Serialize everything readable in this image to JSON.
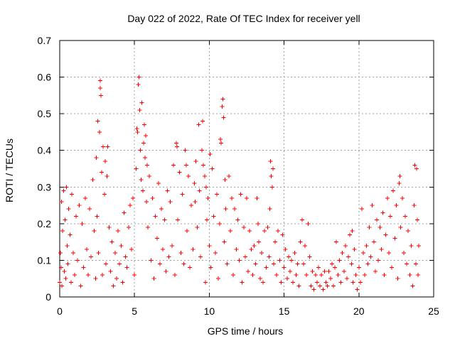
{
  "chart_data": {
    "type": "scatter",
    "title": "Day 022 of 2022, Rate Of TEC Index for receiver yell",
    "xlabel": "GPS time / hours",
    "ylabel": "ROTI / TECUs",
    "xlim": [
      0,
      25
    ],
    "ylim": [
      0,
      0.7
    ],
    "xticks": [
      "0",
      "5",
      "10",
      "15",
      "20",
      "25"
    ],
    "yticks": [
      "0",
      "0.1",
      "0.2",
      "0.3",
      "0.4",
      "0.5",
      "0.6",
      "0.7"
    ],
    "grid": true,
    "series": [
      {
        "color": "#ff0000",
        "marker": "plus",
        "points": [
          [
            0.0,
            0.04
          ],
          [
            0.05,
            0.12
          ],
          [
            0.1,
            0.08
          ],
          [
            0.12,
            0.26
          ],
          [
            0.15,
            0.03
          ],
          [
            0.2,
            0.18
          ],
          [
            0.25,
            0.29
          ],
          [
            0.3,
            0.07
          ],
          [
            0.35,
            0.21
          ],
          [
            0.4,
            0.05
          ],
          [
            0.45,
            0.3
          ],
          [
            0.5,
            0.14
          ],
          [
            0.55,
            0.09
          ],
          [
            0.6,
            0.24
          ],
          [
            0.7,
            0.17
          ],
          [
            0.75,
            0.04
          ],
          [
            0.8,
            0.28
          ],
          [
            0.9,
            0.12
          ],
          [
            1.0,
            0.06
          ],
          [
            1.1,
            0.22
          ],
          [
            1.2,
            0.1
          ],
          [
            1.3,
            0.25
          ],
          [
            1.4,
            0.03
          ],
          [
            1.5,
            0.2
          ],
          [
            1.6,
            0.08
          ],
          [
            1.7,
            0.27
          ],
          [
            1.8,
            0.13
          ],
          [
            1.9,
            0.06
          ],
          [
            2.0,
            0.24
          ],
          [
            2.1,
            0.11
          ],
          [
            2.2,
            0.32
          ],
          [
            2.3,
            0.18
          ],
          [
            2.4,
            0.05
          ],
          [
            2.45,
            0.38
          ],
          [
            2.5,
            0.22
          ],
          [
            2.55,
            0.48
          ],
          [
            2.6,
            0.12
          ],
          [
            2.65,
            0.45
          ],
          [
            2.7,
            0.59
          ],
          [
            2.72,
            0.57
          ],
          [
            2.75,
            0.55
          ],
          [
            2.8,
            0.34
          ],
          [
            2.85,
            0.06
          ],
          [
            2.9,
            0.41
          ],
          [
            3.0,
            0.28
          ],
          [
            3.05,
            0.37
          ],
          [
            3.1,
            0.09
          ],
          [
            3.15,
            0.33
          ],
          [
            3.2,
            0.41
          ],
          [
            3.3,
            0.19
          ],
          [
            3.4,
            0.07
          ],
          [
            3.5,
            0.15
          ],
          [
            3.6,
            0.03
          ],
          [
            3.7,
            0.12
          ],
          [
            3.8,
            0.05
          ],
          [
            3.9,
            0.18
          ],
          [
            4.0,
            0.09
          ],
          [
            4.1,
            0.14
          ],
          [
            4.2,
            0.04
          ],
          [
            4.3,
            0.23
          ],
          [
            4.4,
            0.11
          ],
          [
            4.5,
            0.08
          ],
          [
            4.6,
            0.19
          ],
          [
            4.7,
            0.25
          ],
          [
            4.8,
            0.13
          ],
          [
            4.9,
            0.27
          ],
          [
            5.0,
            0.06
          ],
          [
            5.1,
            0.35
          ],
          [
            5.15,
            0.46
          ],
          [
            5.2,
            0.45
          ],
          [
            5.25,
            0.58
          ],
          [
            5.3,
            0.6
          ],
          [
            5.35,
            0.51
          ],
          [
            5.4,
            0.4
          ],
          [
            5.45,
            0.32
          ],
          [
            5.5,
            0.53
          ],
          [
            5.55,
            0.29
          ],
          [
            5.6,
            0.42
          ],
          [
            5.65,
            0.47
          ],
          [
            5.7,
            0.38
          ],
          [
            5.75,
            0.44
          ],
          [
            5.8,
            0.26
          ],
          [
            5.85,
            0.36
          ],
          [
            5.9,
            0.19
          ],
          [
            6.0,
            0.33
          ],
          [
            6.1,
            0.1
          ],
          [
            6.2,
            0.27
          ],
          [
            6.3,
            0.05
          ],
          [
            6.4,
            0.22
          ],
          [
            6.5,
            0.16
          ],
          [
            6.6,
            0.31
          ],
          [
            6.7,
            0.09
          ],
          [
            6.8,
            0.24
          ],
          [
            6.9,
            0.13
          ],
          [
            7.0,
            0.21
          ],
          [
            7.1,
            0.07
          ],
          [
            7.2,
            0.29
          ],
          [
            7.3,
            0.11
          ],
          [
            7.4,
            0.26
          ],
          [
            7.5,
            0.14
          ],
          [
            7.6,
            0.36
          ],
          [
            7.7,
            0.06
          ],
          [
            7.8,
            0.42
          ],
          [
            7.85,
            0.41
          ],
          [
            7.9,
            0.21
          ],
          [
            8.0,
            0.34
          ],
          [
            8.1,
            0.12
          ],
          [
            8.2,
            0.28
          ],
          [
            8.3,
            0.09
          ],
          [
            8.4,
            0.4
          ],
          [
            8.45,
            0.36
          ],
          [
            8.5,
            0.18
          ],
          [
            8.6,
            0.33
          ],
          [
            8.7,
            0.08
          ],
          [
            8.8,
            0.25
          ],
          [
            8.9,
            0.13
          ],
          [
            9.0,
            0.31
          ],
          [
            9.05,
            0.26
          ],
          [
            9.1,
            0.37
          ],
          [
            9.2,
            0.19
          ],
          [
            9.3,
            0.47
          ],
          [
            9.35,
            0.29
          ],
          [
            9.4,
            0.11
          ],
          [
            9.5,
            0.4
          ],
          [
            9.55,
            0.48
          ],
          [
            9.6,
            0.36
          ],
          [
            9.7,
            0.33
          ],
          [
            9.75,
            0.04
          ],
          [
            9.8,
            0.3
          ],
          [
            9.85,
            0.21
          ],
          [
            9.9,
            0.27
          ],
          [
            10.0,
            0.14
          ],
          [
            10.05,
            0.39
          ],
          [
            10.1,
            0.08
          ],
          [
            10.2,
            0.35
          ],
          [
            10.3,
            0.22
          ],
          [
            10.4,
            0.12
          ],
          [
            10.5,
            0.28
          ],
          [
            10.6,
            0.05
          ],
          [
            10.7,
            0.2
          ],
          [
            10.75,
            0.43
          ],
          [
            10.8,
            0.42
          ],
          [
            10.85,
            0.52
          ],
          [
            10.9,
            0.54
          ],
          [
            10.95,
            0.49
          ],
          [
            11.0,
            0.15
          ],
          [
            11.05,
            0.32
          ],
          [
            11.1,
            0.24
          ],
          [
            11.2,
            0.09
          ],
          [
            11.3,
            0.33
          ],
          [
            11.4,
            0.18
          ],
          [
            11.5,
            0.27
          ],
          [
            11.6,
            0.06
          ],
          [
            11.7,
            0.24
          ],
          [
            11.8,
            0.13
          ],
          [
            11.9,
            0.21
          ],
          [
            12.0,
            0.1
          ],
          [
            12.1,
            0.28
          ],
          [
            12.2,
            0.04
          ],
          [
            12.3,
            0.19
          ],
          [
            12.4,
            0.11
          ],
          [
            12.5,
            0.27
          ],
          [
            12.6,
            0.07
          ],
          [
            12.7,
            0.18
          ],
          [
            12.8,
            0.13
          ],
          [
            12.9,
            0.06
          ],
          [
            13.0,
            0.14
          ],
          [
            13.1,
            0.09
          ],
          [
            13.2,
            0.27
          ],
          [
            13.25,
            0.2
          ],
          [
            13.3,
            0.15
          ],
          [
            13.4,
            0.05
          ],
          [
            13.5,
            0.12
          ],
          [
            13.6,
            0.04
          ],
          [
            13.7,
            0.18
          ],
          [
            13.8,
            0.08
          ],
          [
            13.9,
            0.19
          ],
          [
            14.0,
            0.11
          ],
          [
            14.05,
            0.24
          ],
          [
            14.1,
            0.37
          ],
          [
            14.15,
            0.33
          ],
          [
            14.2,
            0.3
          ],
          [
            14.25,
            0.35
          ],
          [
            14.3,
            0.09
          ],
          [
            14.4,
            0.15
          ],
          [
            14.5,
            0.06
          ],
          [
            14.6,
            0.18
          ],
          [
            14.7,
            0.1
          ],
          [
            14.8,
            0.04
          ],
          [
            14.9,
            0.17
          ],
          [
            15.0,
            0.08
          ],
          [
            15.1,
            0.13
          ],
          [
            15.2,
            0.05
          ],
          [
            15.3,
            0.11
          ],
          [
            15.4,
            0.07
          ],
          [
            15.5,
            0.1
          ],
          [
            15.6,
            0.04
          ],
          [
            15.7,
            0.12
          ],
          [
            15.8,
            0.06
          ],
          [
            15.9,
            0.09
          ],
          [
            16.0,
            0.03
          ],
          [
            16.1,
            0.15
          ],
          [
            16.2,
            0.21
          ],
          [
            16.3,
            0.09
          ],
          [
            16.4,
            0.14
          ],
          [
            16.5,
            0.06
          ],
          [
            16.6,
            0.2
          ],
          [
            16.7,
            0.11
          ],
          [
            16.8,
            0.03
          ],
          [
            16.9,
            0.07
          ],
          [
            17.0,
            0.02
          ],
          [
            17.1,
            0.06
          ],
          [
            17.2,
            0.04
          ],
          [
            17.3,
            0.08
          ],
          [
            17.4,
            0.03
          ],
          [
            17.5,
            0.06
          ],
          [
            17.6,
            0.02
          ],
          [
            17.7,
            0.07
          ],
          [
            17.8,
            0.04
          ],
          [
            17.9,
            0.03
          ],
          [
            18.0,
            0.07
          ],
          [
            18.1,
            0.05
          ],
          [
            18.2,
            0.09
          ],
          [
            18.3,
            0.03
          ],
          [
            18.4,
            0.08
          ],
          [
            18.5,
            0.15
          ],
          [
            18.6,
            0.06
          ],
          [
            18.7,
            0.1
          ],
          [
            18.8,
            0.04
          ],
          [
            18.9,
            0.12
          ],
          [
            19.0,
            0.07
          ],
          [
            19.1,
            0.14
          ],
          [
            19.2,
            0.05
          ],
          [
            19.3,
            0.11
          ],
          [
            19.4,
            0.17
          ],
          [
            19.5,
            0.09
          ],
          [
            19.55,
            0.18
          ],
          [
            19.6,
            0.04
          ],
          [
            19.7,
            0.13
          ],
          [
            19.8,
            0.06
          ],
          [
            19.9,
            0.02
          ],
          [
            20.0,
            0.08
          ],
          [
            20.1,
            0.04
          ],
          [
            20.2,
            0.24
          ],
          [
            20.3,
            0.12
          ],
          [
            20.4,
            0.06
          ],
          [
            20.5,
            0.14
          ],
          [
            20.6,
            0.09
          ],
          [
            20.7,
            0.19
          ],
          [
            20.8,
            0.11
          ],
          [
            20.9,
            0.25
          ],
          [
            21.0,
            0.15
          ],
          [
            21.1,
            0.07
          ],
          [
            21.2,
            0.21
          ],
          [
            21.3,
            0.1
          ],
          [
            21.4,
            0.19
          ],
          [
            21.5,
            0.13
          ],
          [
            21.6,
            0.23
          ],
          [
            21.7,
            0.06
          ],
          [
            21.8,
            0.17
          ],
          [
            21.9,
            0.27
          ],
          [
            22.0,
            0.12
          ],
          [
            22.1,
            0.22
          ],
          [
            22.2,
            0.08
          ],
          [
            22.3,
            0.29
          ],
          [
            22.4,
            0.16
          ],
          [
            22.5,
            0.25
          ],
          [
            22.6,
            0.05
          ],
          [
            22.7,
            0.31
          ],
          [
            22.75,
            0.33
          ],
          [
            22.8,
            0.19
          ],
          [
            22.9,
            0.27
          ],
          [
            23.0,
            0.12
          ],
          [
            23.1,
            0.22
          ],
          [
            23.2,
            0.09
          ],
          [
            23.3,
            0.18
          ],
          [
            23.4,
            0.06
          ],
          [
            23.5,
            0.14
          ],
          [
            23.6,
            0.03
          ],
          [
            23.7,
            0.25
          ],
          [
            23.75,
            0.36
          ],
          [
            23.8,
            0.09
          ],
          [
            23.85,
            0.35
          ],
          [
            23.9,
            0.21
          ],
          [
            23.95,
            0.06
          ],
          [
            24.0,
            0.14
          ]
        ]
      }
    ]
  }
}
